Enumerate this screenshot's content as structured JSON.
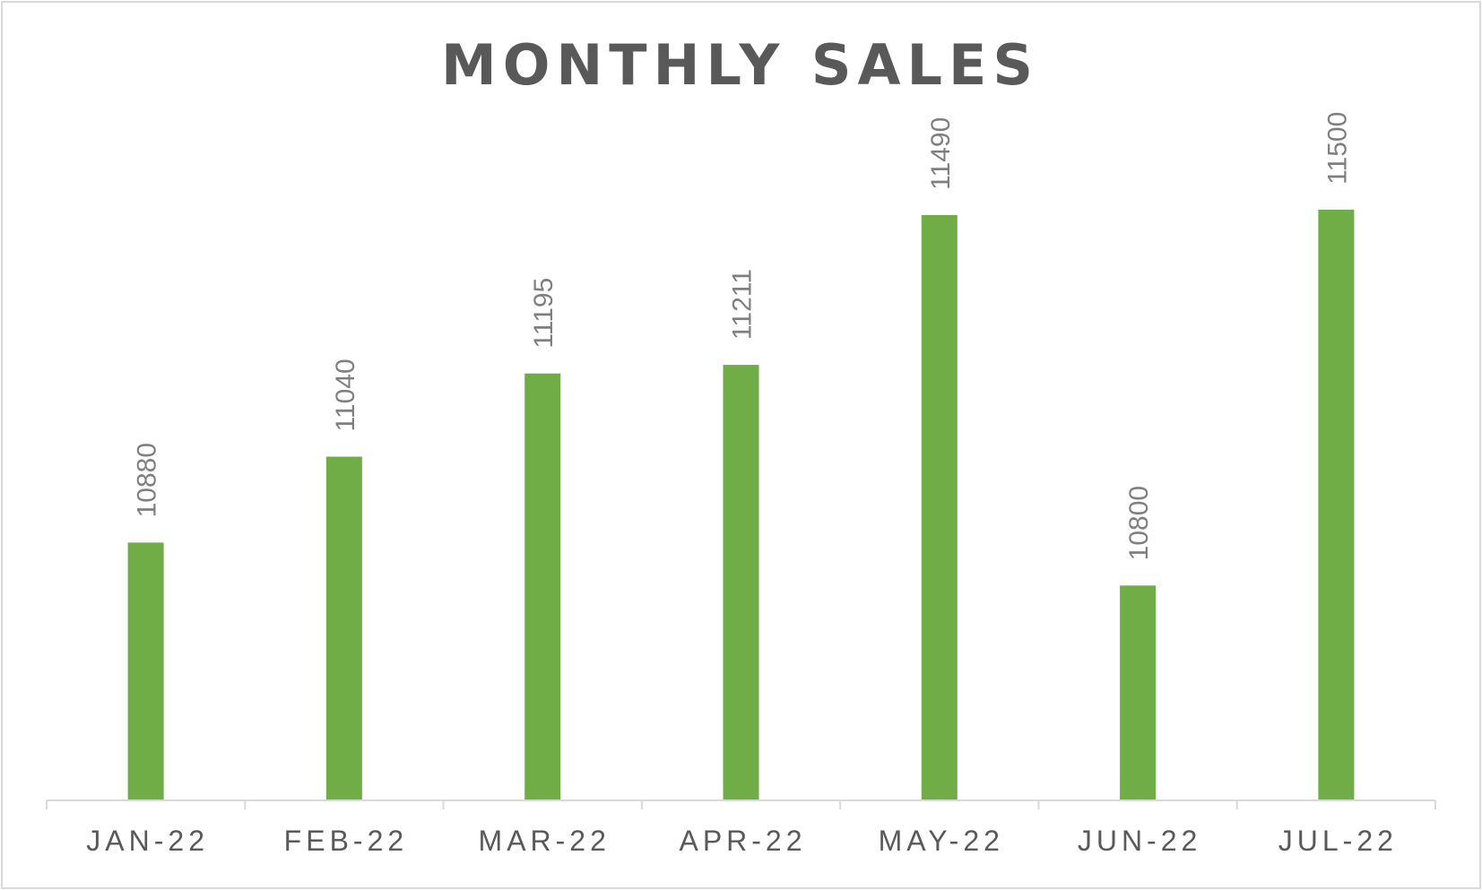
{
  "chart_data": {
    "type": "bar",
    "title": "MONTHLY SALES",
    "xlabel": "",
    "ylabel": "",
    "categories": [
      "JAN-22",
      "FEB-22",
      "MAR-22",
      "APR-22",
      "MAY-22",
      "JUN-22",
      "JUL-22"
    ],
    "series": [
      {
        "values": [
          10880,
          11040,
          11195,
          11211,
          11490,
          10800,
          11500
        ]
      }
    ],
    "ylim": [
      10400,
      11600
    ],
    "grid": false,
    "legend": "none",
    "data_labels": true,
    "bar_color": "#70ad47"
  }
}
